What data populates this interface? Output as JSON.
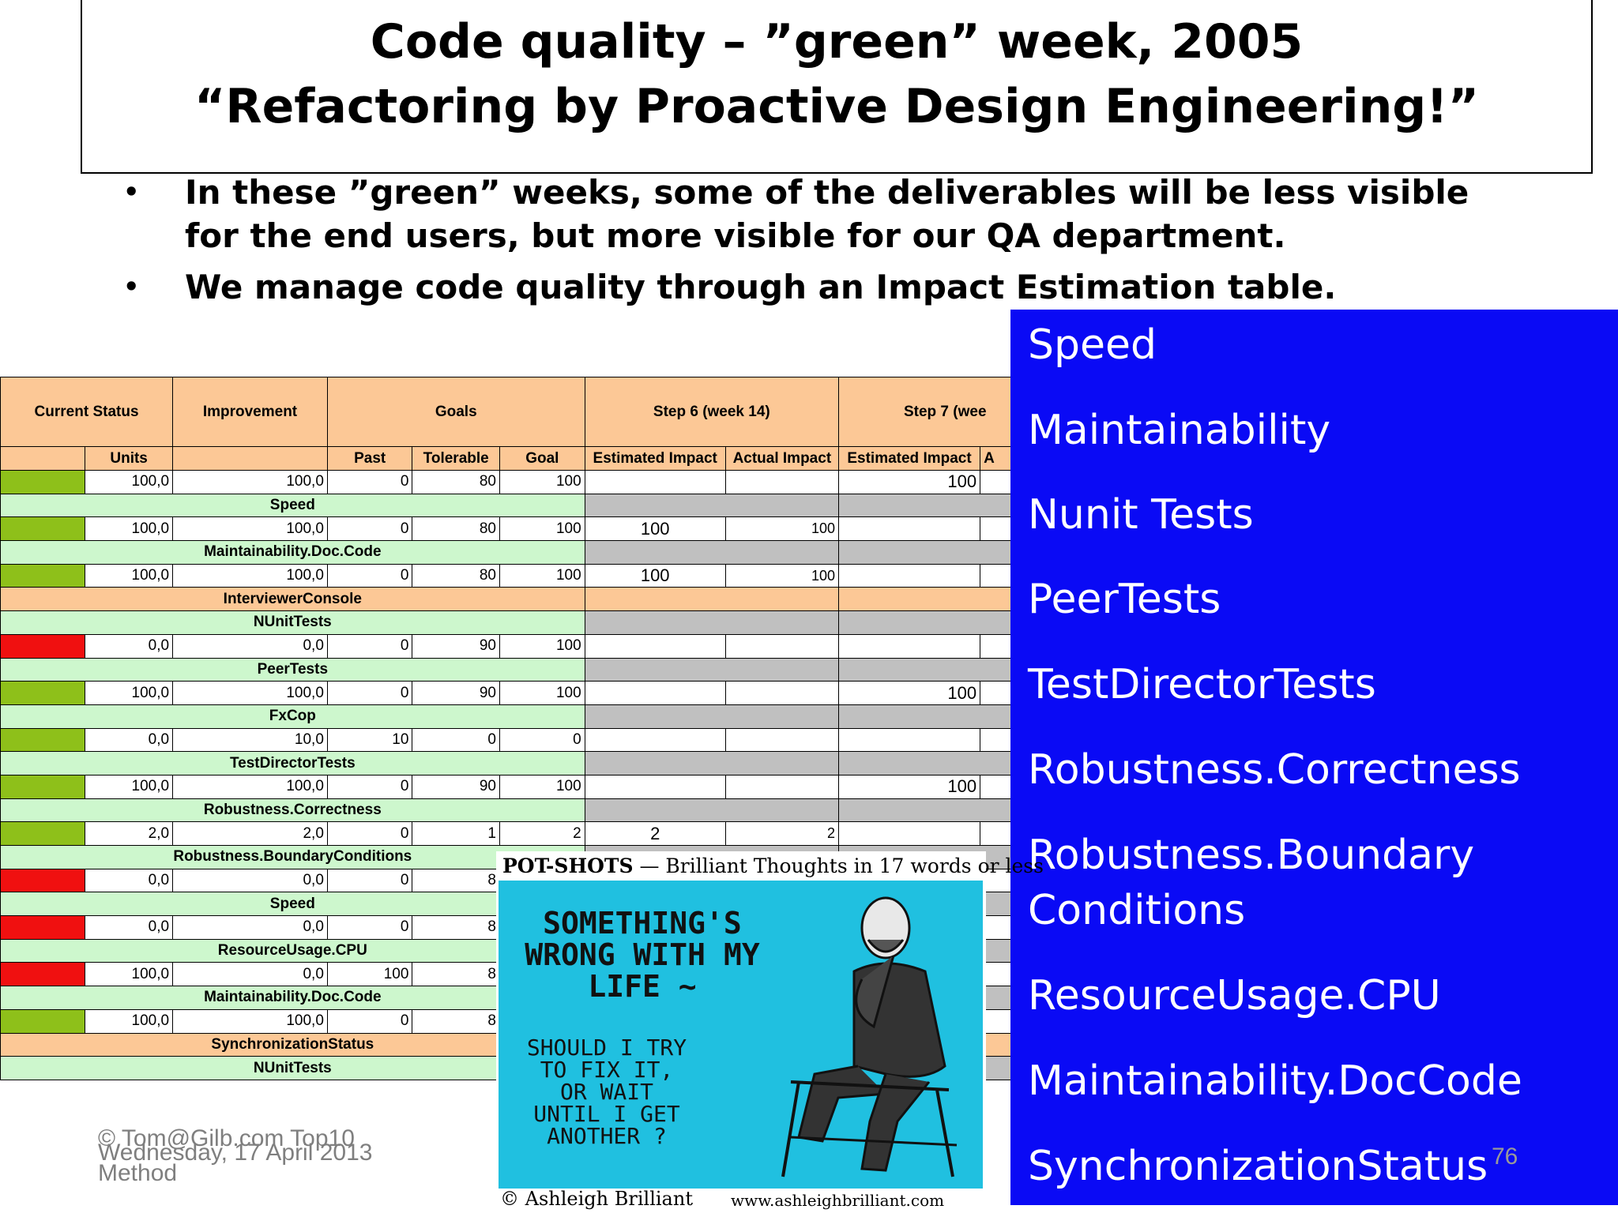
{
  "title": {
    "line1": "Code quality – ”green” week, 2005",
    "line2": "“Refactoring by Proactive Design Engineering!”"
  },
  "bullets": [
    "In these ”green” weeks, some of the deliverables will be less visible for the end users, but more visible for our QA department.",
    "We manage code quality through an Impact Estimation table."
  ],
  "bullet_symbol": "•",
  "table": {
    "header_groups": {
      "current_status": "Current Status",
      "improvement": "Improvement",
      "goals": "Goals",
      "step6": "Step 6 (week 14)",
      "step7": "Step 7 (wee"
    },
    "subheaders": {
      "units": "Units",
      "past": "Past",
      "tolerable": "Tolerable",
      "goal": "Goal",
      "estimated_impact": "Estimated Impact",
      "actual_impact": "Actual Impact",
      "estimated_impact_7": "Estimated Impact",
      "actual_impact_7": "A"
    },
    "rows": [
      {
        "kind": "data",
        "status": "green",
        "units": "100,0",
        "improvement": "100,0",
        "past": "0",
        "tolerable": "80",
        "goal": "100",
        "s6e": "",
        "s6a": "",
        "s7e": "100"
      },
      {
        "kind": "label",
        "text": "Speed"
      },
      {
        "kind": "data",
        "status": "green",
        "units": "100,0",
        "improvement": "100,0",
        "past": "0",
        "tolerable": "80",
        "goal": "100",
        "s6e": "100",
        "s6a": "100",
        "s7e": ""
      },
      {
        "kind": "label",
        "text": "Maintainability.Doc.Code"
      },
      {
        "kind": "data",
        "status": "green",
        "units": "100,0",
        "improvement": "100,0",
        "past": "0",
        "tolerable": "80",
        "goal": "100",
        "s6e": "100",
        "s6a": "100",
        "s7e": ""
      },
      {
        "kind": "section",
        "text": "InterviewerConsole"
      },
      {
        "kind": "label",
        "text": "NUnitTests"
      },
      {
        "kind": "data",
        "status": "red",
        "units": "0,0",
        "improvement": "0,0",
        "past": "0",
        "tolerable": "90",
        "goal": "100",
        "s6e": "",
        "s6a": "",
        "s7e": ""
      },
      {
        "kind": "label",
        "text": "PeerTests"
      },
      {
        "kind": "data",
        "status": "green",
        "units": "100,0",
        "improvement": "100,0",
        "past": "0",
        "tolerable": "90",
        "goal": "100",
        "s6e": "",
        "s6a": "",
        "s7e": "100"
      },
      {
        "kind": "label",
        "text": "FxCop"
      },
      {
        "kind": "data",
        "status": "green",
        "units": "0,0",
        "improvement": "10,0",
        "past": "10",
        "tolerable": "0",
        "goal": "0",
        "s6e": "",
        "s6a": "",
        "s7e": ""
      },
      {
        "kind": "label",
        "text": "TestDirectorTests"
      },
      {
        "kind": "data",
        "status": "green",
        "units": "100,0",
        "improvement": "100,0",
        "past": "0",
        "tolerable": "90",
        "goal": "100",
        "s6e": "",
        "s6a": "",
        "s7e": "100"
      },
      {
        "kind": "label",
        "text": "Robustness.Correctness"
      },
      {
        "kind": "data",
        "status": "green",
        "units": "2,0",
        "improvement": "2,0",
        "past": "0",
        "tolerable": "1",
        "goal": "2",
        "s6e": "2",
        "s6a": "2",
        "s7e": ""
      },
      {
        "kind": "label",
        "text": "Robustness.BoundaryConditions"
      },
      {
        "kind": "data",
        "status": "red",
        "units": "0,0",
        "improvement": "0,0",
        "past": "0",
        "tolerable": "8",
        "goal": "",
        "s6e": "",
        "s6a": "",
        "s7e": ""
      },
      {
        "kind": "label",
        "text": "Speed"
      },
      {
        "kind": "data",
        "status": "red",
        "units": "0,0",
        "improvement": "0,0",
        "past": "0",
        "tolerable": "8",
        "goal": "",
        "s6e": "",
        "s6a": "",
        "s7e": ""
      },
      {
        "kind": "label",
        "text": "ResourceUsage.CPU"
      },
      {
        "kind": "data",
        "status": "red",
        "units": "100,0",
        "improvement": "0,0",
        "past": "100",
        "tolerable": "8",
        "goal": "",
        "s6e": "",
        "s6a": "",
        "s7e": ""
      },
      {
        "kind": "label",
        "text": "Maintainability.Doc.Code"
      },
      {
        "kind": "data",
        "status": "green",
        "units": "100,0",
        "improvement": "100,0",
        "past": "0",
        "tolerable": "8",
        "goal": "",
        "s6e": "",
        "s6a": "",
        "s7e": ""
      },
      {
        "kind": "section",
        "text": "SynchronizationStatus"
      },
      {
        "kind": "label",
        "text": "NUnitTests"
      }
    ]
  },
  "blue_panel": {
    "items": [
      "Speed",
      "Maintainability",
      "Nunit Tests",
      "PeerTests",
      "TestDirectorTests",
      "Robustness.Correctness",
      "Robustness.Boundary",
      "Conditions",
      "ResourceUsage.CPU",
      "Maintainability.DocCode",
      "SynchronizationStatus"
    ]
  },
  "cartoon": {
    "brand": "POT-SHOTS",
    "tagline": "— Brilliant Thoughts in 17 words or less",
    "main_text": "SOMETHING'S WRONG WITH MY LIFE ~",
    "question_text": "SHOULD I TRY TO FIX IT, OR WAIT UNTIL I GET ANOTHER ?",
    "copyright": "© Ashleigh Brilliant",
    "website": "www.ashleighbrilliant.com"
  },
  "footer": {
    "copyright_line1": "© Tom@Gilb.com  Top10",
    "copyright_line2": "Method",
    "date": "Wednesday, 17 April 2013",
    "page_number": "76"
  },
  "colors": {
    "status_green": "#8ec01a",
    "status_red": "#f01010",
    "header_orange": "#fcc896",
    "label_green": "#cdf7cd",
    "panel_blue": "#0a0af5",
    "cartoon_cyan": "#20c0e0"
  }
}
